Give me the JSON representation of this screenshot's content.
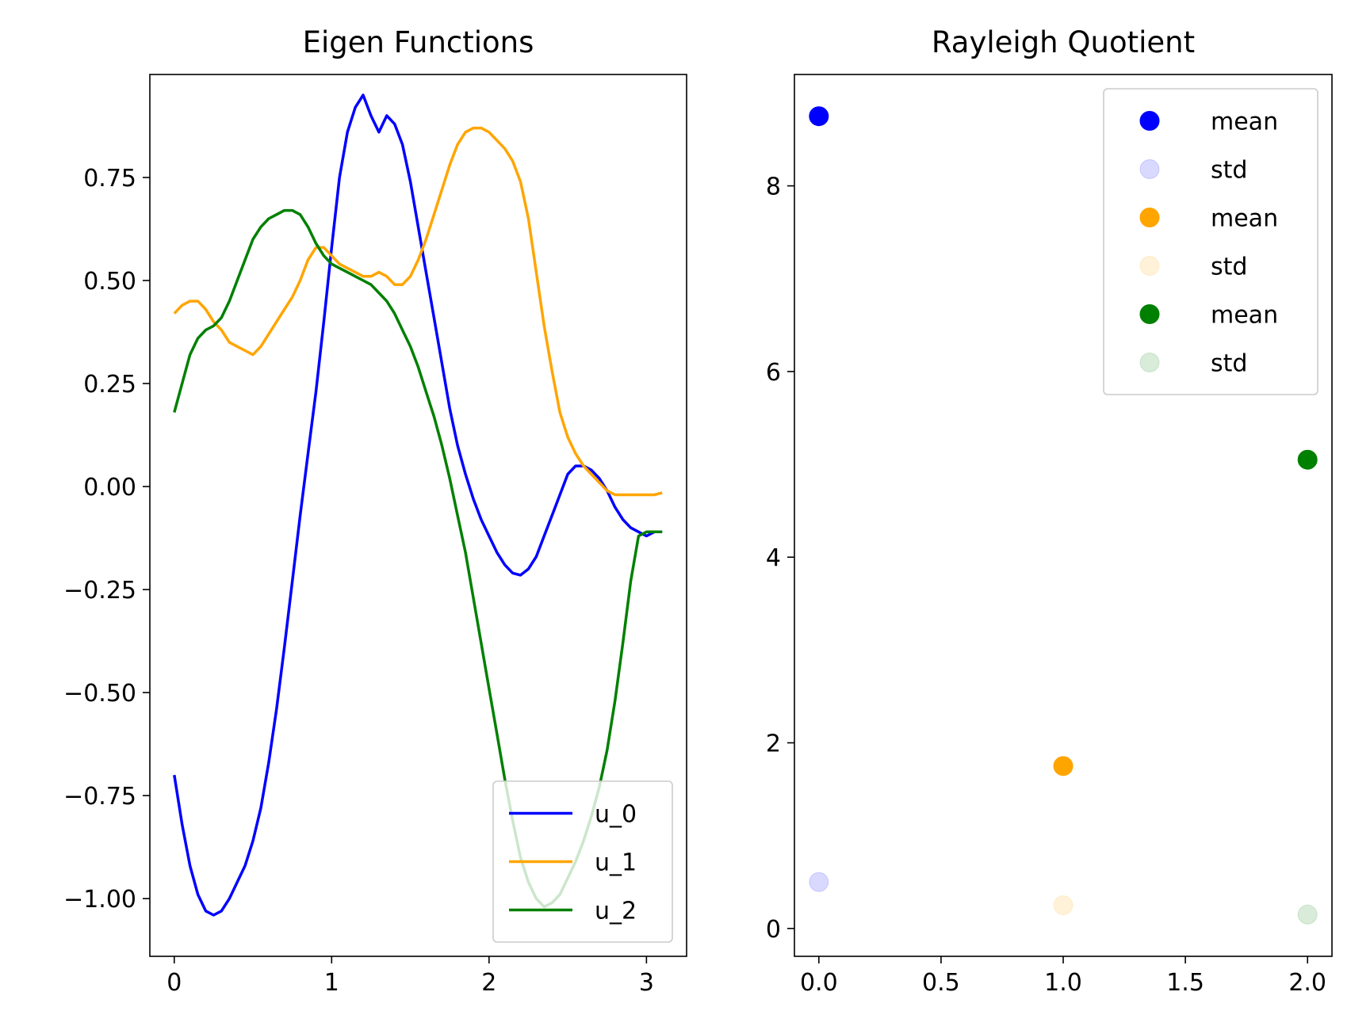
{
  "charts": [
    {
      "type": "line",
      "title": "Eigen Functions",
      "xlim": [
        -0.155,
        3.255
      ],
      "ylim": [
        -1.14,
        1.0
      ],
      "xticks": [
        0,
        1,
        2,
        3
      ],
      "xtick_labels": [
        "0",
        "1",
        "2",
        "3"
      ],
      "yticks": [
        -1.0,
        -0.75,
        -0.5,
        -0.25,
        0.0,
        0.25,
        0.5,
        0.75
      ],
      "ytick_labels": [
        "−1.00",
        "−0.75",
        "−0.50",
        "−0.25",
        "0.00",
        "0.25",
        "0.50",
        "0.75"
      ],
      "legend": {
        "position": "lower-right",
        "labels": [
          "u_0",
          "u_1",
          "u_2"
        ]
      },
      "series": [
        {
          "name": "u_0",
          "color": "#0000ff",
          "x": [
            0,
            0.05,
            0.1,
            0.15,
            0.2,
            0.25,
            0.3,
            0.35,
            0.4,
            0.45,
            0.5,
            0.55,
            0.6,
            0.65,
            0.7,
            0.75,
            0.8,
            0.85,
            0.9,
            0.95,
            1.0,
            1.05,
            1.1,
            1.15,
            1.2,
            1.25,
            1.3,
            1.35,
            1.4,
            1.45,
            1.5,
            1.55,
            1.6,
            1.65,
            1.7,
            1.75,
            1.8,
            1.85,
            1.9,
            1.95,
            2.0,
            2.05,
            2.1,
            2.15,
            2.2,
            2.25,
            2.3,
            2.35,
            2.4,
            2.45,
            2.5,
            2.55,
            2.6,
            2.65,
            2.7,
            2.75,
            2.8,
            2.85,
            2.9,
            2.95,
            3.0,
            3.05,
            3.1
          ],
          "y": [
            -0.7,
            -0.82,
            -0.92,
            -0.99,
            -1.03,
            -1.04,
            -1.03,
            -1.0,
            -0.96,
            -0.92,
            -0.86,
            -0.78,
            -0.67,
            -0.54,
            -0.39,
            -0.23,
            -0.07,
            0.08,
            0.23,
            0.4,
            0.58,
            0.75,
            0.86,
            0.92,
            0.95,
            0.9,
            0.86,
            0.9,
            0.88,
            0.83,
            0.74,
            0.63,
            0.52,
            0.41,
            0.3,
            0.19,
            0.1,
            0.03,
            -0.03,
            -0.08,
            -0.12,
            -0.16,
            -0.19,
            -0.21,
            -0.215,
            -0.2,
            -0.17,
            -0.12,
            -0.07,
            -0.02,
            0.03,
            0.05,
            0.05,
            0.04,
            0.02,
            -0.01,
            -0.05,
            -0.08,
            -0.1,
            -0.11,
            -0.12,
            -0.11,
            -0.11
          ]
        },
        {
          "name": "u_1",
          "color": "#ffa500",
          "x": [
            0,
            0.05,
            0.1,
            0.15,
            0.2,
            0.25,
            0.3,
            0.35,
            0.4,
            0.45,
            0.5,
            0.55,
            0.6,
            0.65,
            0.7,
            0.75,
            0.8,
            0.85,
            0.9,
            0.95,
            1.0,
            1.05,
            1.1,
            1.15,
            1.2,
            1.25,
            1.3,
            1.35,
            1.4,
            1.45,
            1.5,
            1.55,
            1.6,
            1.65,
            1.7,
            1.75,
            1.8,
            1.85,
            1.9,
            1.95,
            2.0,
            2.05,
            2.1,
            2.15,
            2.2,
            2.25,
            2.3,
            2.35,
            2.4,
            2.45,
            2.5,
            2.55,
            2.6,
            2.65,
            2.7,
            2.75,
            2.8,
            2.85,
            2.9,
            2.95,
            3.0,
            3.05,
            3.1
          ],
          "y": [
            0.42,
            0.44,
            0.45,
            0.45,
            0.43,
            0.4,
            0.38,
            0.35,
            0.34,
            0.33,
            0.32,
            0.34,
            0.37,
            0.4,
            0.43,
            0.46,
            0.5,
            0.55,
            0.58,
            0.58,
            0.56,
            0.54,
            0.53,
            0.52,
            0.51,
            0.51,
            0.52,
            0.51,
            0.49,
            0.49,
            0.51,
            0.55,
            0.6,
            0.66,
            0.72,
            0.78,
            0.83,
            0.86,
            0.87,
            0.87,
            0.86,
            0.84,
            0.82,
            0.79,
            0.74,
            0.65,
            0.52,
            0.39,
            0.28,
            0.18,
            0.12,
            0.08,
            0.05,
            0.03,
            0.01,
            -0.01,
            -0.02,
            -0.02,
            -0.02,
            -0.02,
            -0.02,
            -0.02,
            -0.015
          ]
        },
        {
          "name": "u_2",
          "color": "#008000",
          "x": [
            0,
            0.05,
            0.1,
            0.15,
            0.2,
            0.25,
            0.3,
            0.35,
            0.4,
            0.45,
            0.5,
            0.55,
            0.6,
            0.65,
            0.7,
            0.75,
            0.8,
            0.85,
            0.9,
            0.95,
            1.0,
            1.05,
            1.1,
            1.15,
            1.2,
            1.25,
            1.3,
            1.35,
            1.4,
            1.45,
            1.5,
            1.55,
            1.6,
            1.65,
            1.7,
            1.75,
            1.8,
            1.85,
            1.9,
            1.95,
            2.0,
            2.05,
            2.1,
            2.15,
            2.2,
            2.25,
            2.3,
            2.35,
            2.4,
            2.45,
            2.5,
            2.55,
            2.6,
            2.65,
            2.7,
            2.75,
            2.8,
            2.85,
            2.9,
            2.95,
            3.0,
            3.05,
            3.1
          ],
          "y": [
            0.18,
            0.25,
            0.32,
            0.36,
            0.38,
            0.39,
            0.41,
            0.45,
            0.5,
            0.55,
            0.6,
            0.63,
            0.65,
            0.66,
            0.67,
            0.67,
            0.66,
            0.63,
            0.59,
            0.56,
            0.54,
            0.53,
            0.52,
            0.51,
            0.5,
            0.49,
            0.47,
            0.45,
            0.42,
            0.38,
            0.34,
            0.29,
            0.23,
            0.17,
            0.1,
            0.02,
            -0.07,
            -0.16,
            -0.27,
            -0.38,
            -0.49,
            -0.6,
            -0.71,
            -0.81,
            -0.9,
            -0.96,
            -1.0,
            -1.02,
            -1.01,
            -0.99,
            -0.95,
            -0.91,
            -0.86,
            -0.8,
            -0.73,
            -0.64,
            -0.52,
            -0.38,
            -0.23,
            -0.12,
            -0.11,
            -0.11,
            -0.11
          ]
        }
      ]
    },
    {
      "type": "scatter",
      "title": "Rayleigh Quotient",
      "xlim": [
        -0.1,
        2.1
      ],
      "ylim": [
        -0.3,
        9.2
      ],
      "xticks": [
        0.0,
        0.5,
        1.0,
        1.5,
        2.0
      ],
      "xtick_labels": [
        "0.0",
        "0.5",
        "1.0",
        "1.5",
        "2.0"
      ],
      "yticks": [
        0,
        2,
        4,
        6,
        8
      ],
      "ytick_labels": [
        "0",
        "2",
        "4",
        "6",
        "8"
      ],
      "legend": {
        "position": "upper-right",
        "labels": [
          "mean",
          "std",
          "mean",
          "std",
          "mean",
          "std"
        ]
      },
      "series": [
        {
          "name": "mean",
          "color": "#0000ff",
          "alpha": 1.0,
          "x": [
            0
          ],
          "y": [
            8.75
          ]
        },
        {
          "name": "std",
          "color": "#0000ff",
          "alpha": 0.15,
          "x": [
            0
          ],
          "y": [
            0.5
          ]
        },
        {
          "name": "mean",
          "color": "#ffa500",
          "alpha": 1.0,
          "x": [
            1
          ],
          "y": [
            1.75
          ]
        },
        {
          "name": "std",
          "color": "#ffa500",
          "alpha": 0.15,
          "x": [
            1
          ],
          "y": [
            0.25
          ]
        },
        {
          "name": "mean",
          "color": "#008000",
          "alpha": 1.0,
          "x": [
            2
          ],
          "y": [
            5.05
          ]
        },
        {
          "name": "std",
          "color": "#008000",
          "alpha": 0.15,
          "x": [
            2
          ],
          "y": [
            0.15
          ]
        }
      ]
    }
  ]
}
